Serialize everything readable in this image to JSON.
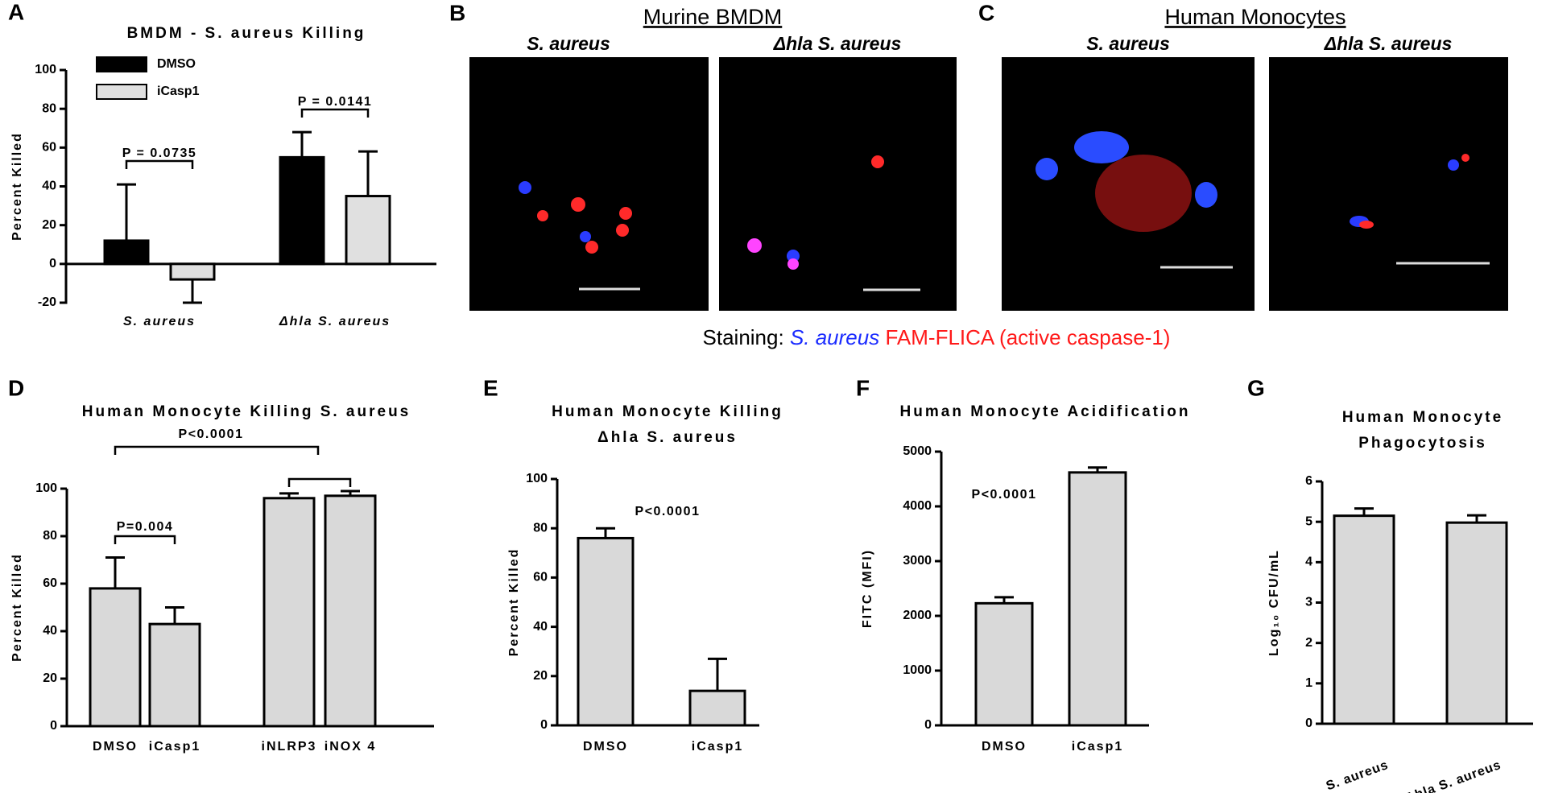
{
  "chart_data": [
    {
      "type": "bar",
      "panel": "A",
      "title": "BMDM - S. aureus Killing",
      "y_label": "Percent Killed",
      "categories": [
        "S. aureus",
        "Δhla S. aureus"
      ],
      "series": [
        {
          "name": "DMSO",
          "color": "#000000",
          "values": [
            12,
            55
          ],
          "errors": [
            29,
            13
          ]
        },
        {
          "name": "iCasp1",
          "color": "#e0e0e0",
          "values": [
            -8,
            35
          ],
          "errors": [
            12,
            23
          ]
        }
      ],
      "ylim": [
        -20,
        100
      ],
      "yticks": [
        -20,
        0,
        20,
        40,
        60,
        80,
        100
      ],
      "annotations": [
        "P = 0.0735",
        "P = 0.0141"
      ]
    },
    {
      "type": "bar",
      "panel": "D",
      "title": "Human Monocyte Killing S. aureus",
      "y_label": "Percent Killed",
      "categories": [
        "DMSO",
        "iCasp1",
        "iNLRP3",
        "iNOX 4"
      ],
      "color": "#d9d9d9",
      "values": [
        58,
        43,
        96,
        97
      ],
      "errors": [
        13,
        7,
        2,
        2
      ],
      "ylim": [
        0,
        100
      ],
      "yticks": [
        0,
        20,
        40,
        60,
        80,
        100
      ],
      "annotations": [
        "P=0.004",
        "P<0.0001"
      ]
    },
    {
      "type": "bar",
      "panel": "E",
      "title": [
        "Human Monocyte Killing",
        "Δhla S. aureus"
      ],
      "y_label": "Percent Killed",
      "categories": [
        "DMSO",
        "iCasp1"
      ],
      "color": "#d9d9d9",
      "values": [
        76,
        14
      ],
      "errors": [
        4,
        13
      ],
      "ylim": [
        0,
        100
      ],
      "yticks": [
        0,
        20,
        40,
        60,
        80,
        100
      ],
      "annotations": [
        "P<0.0001"
      ]
    },
    {
      "type": "bar",
      "panel": "F",
      "title": "Human Monocyte Acidification",
      "y_label": "FITC (MFI)",
      "categories": [
        "DMSO",
        "iCasp1"
      ],
      "color": "#d9d9d9",
      "values": [
        2230,
        4620
      ],
      "errors": [
        110,
        90
      ],
      "ylim": [
        0,
        5000
      ],
      "yticks": [
        0,
        1000,
        2000,
        3000,
        4000,
        5000
      ],
      "annotations": [
        "P<0.0001"
      ]
    },
    {
      "type": "bar",
      "panel": "G",
      "title": [
        "Human Monocyte",
        "Phagocytosis"
      ],
      "y_label": "Log₁₀ CFU/mL",
      "categories": [
        "S. aureus",
        "Δhla S. aureus"
      ],
      "color": "#d9d9d9",
      "values": [
        5.15,
        4.98
      ],
      "errors": [
        0.18,
        0.18
      ],
      "ylim": [
        0,
        6
      ],
      "yticks": [
        0,
        1,
        2,
        3,
        4,
        5,
        6
      ],
      "annotations": []
    }
  ],
  "images": {
    "panels": [
      {
        "letter": "B",
        "title": "Murine BMDM",
        "labels": [
          "S. aureus",
          "Δhla S. aureus"
        ]
      },
      {
        "letter": "C",
        "title": "Human Monocytes",
        "labels": [
          "S. aureus",
          "Δhla S. aureus"
        ]
      }
    ],
    "staining": {
      "prefix": "Staining:",
      "first": "S. aureus",
      "second": "FAM-FLICA (active caspase-1)"
    }
  }
}
